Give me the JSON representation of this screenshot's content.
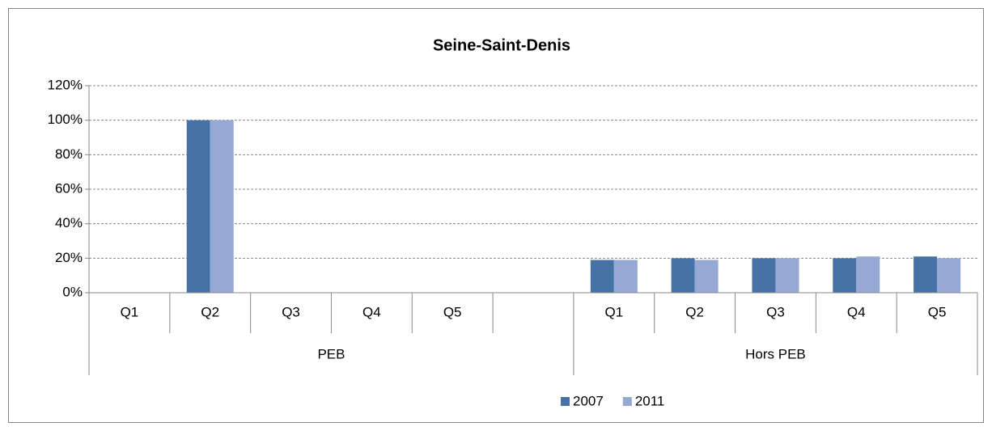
{
  "chart_data": {
    "type": "bar",
    "title": "Seine-Saint-Denis",
    "groups": [
      {
        "name": "PEB",
        "categories": [
          "Q1",
          "Q2",
          "Q3",
          "Q4",
          "Q5",
          null
        ]
      },
      {
        "name": "Hors PEB",
        "categories": [
          "Q1",
          "Q2",
          "Q3",
          "Q4",
          "Q5"
        ]
      }
    ],
    "series": [
      {
        "name": "2007",
        "color": "#4672a8",
        "values": [
          0,
          100,
          0,
          0,
          0,
          null,
          19,
          20,
          20,
          20,
          21
        ]
      },
      {
        "name": "2011",
        "color": "#95a9d4",
        "values": [
          0,
          100,
          0,
          0,
          0,
          null,
          19,
          19,
          20,
          21,
          20
        ]
      }
    ],
    "ylim": [
      0,
      120
    ],
    "yticks": [
      {
        "value": 0,
        "label": "0%"
      },
      {
        "value": 20,
        "label": "20%"
      },
      {
        "value": 40,
        "label": "40%"
      },
      {
        "value": 60,
        "label": "60%"
      },
      {
        "value": 80,
        "label": "80%"
      },
      {
        "value": 100,
        "label": "100%"
      },
      {
        "value": 120,
        "label": "120%"
      }
    ],
    "grid": true,
    "legend": "bottom"
  }
}
